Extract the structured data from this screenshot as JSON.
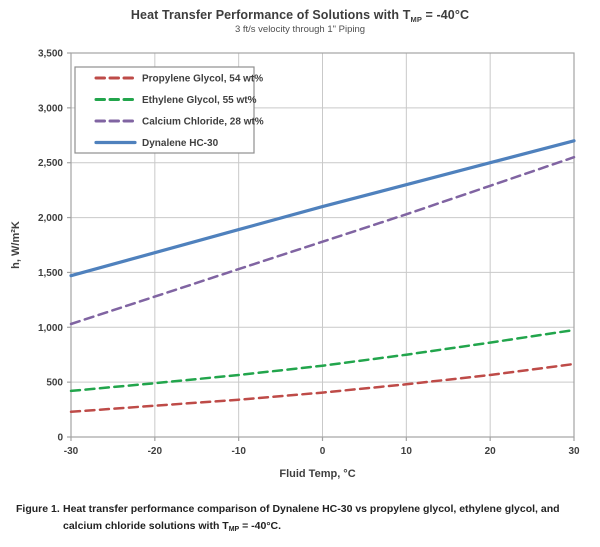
{
  "title": {
    "pre": "Heat Transfer Performance of Solutions with T",
    "sub": "MP",
    "post": " = -40°C",
    "subtitle": "3 ft/s velocity through 1\" Piping"
  },
  "caption": {
    "label": "Figure 1.",
    "line1": "Heat transfer performance comparison of Dynalene HC-30 vs propylene glycol, ethylene glycol, and",
    "line2_pre": "calcium chloride solutions with T",
    "line2_sub": "MP",
    "line2_post": " = -40°C."
  },
  "chart_data": {
    "type": "line",
    "title": "Heat Transfer Performance of Solutions with TMP = -40°C",
    "subtitle": "3 ft/s velocity through 1\" Piping",
    "xlabel": "Fluid Temp, °C",
    "ylabel": "h, W/m²K",
    "xlim": [
      -30,
      30
    ],
    "ylim": [
      0,
      3500
    ],
    "x_ticks": [
      -30,
      -20,
      -10,
      0,
      10,
      20,
      30
    ],
    "x_tick_labels": [
      "-30",
      "-20",
      "-10",
      "0",
      "10",
      "20",
      "30"
    ],
    "y_ticks": [
      0,
      500,
      1000,
      1500,
      2000,
      2500,
      3000,
      3500
    ],
    "y_tick_labels": [
      "0",
      "500",
      "1,000",
      "1,500",
      "2,000",
      "2,500",
      "3,000",
      "3,500"
    ],
    "grid": true,
    "legend_position": "top-left",
    "x": [
      -30,
      -20,
      -10,
      0,
      10,
      20,
      30
    ],
    "series": [
      {
        "name": "Propylene Glycol, 54 wt%",
        "color": "#BE4B48",
        "style": "dashed",
        "values": [
          230,
          285,
          340,
          405,
          480,
          565,
          665
        ]
      },
      {
        "name": "Ethylene Glycol, 55 wt%",
        "color": "#22A54C",
        "style": "dashed",
        "values": [
          420,
          490,
          565,
          650,
          750,
          860,
          975
        ]
      },
      {
        "name": "Calcium Chloride, 28 wt%",
        "color": "#8064A2",
        "style": "dashed",
        "values": [
          1030,
          1280,
          1530,
          1780,
          2030,
          2290,
          2550
        ]
      },
      {
        "name": "Dynalene HC-30",
        "color": "#4F81BD",
        "style": "solid",
        "values": [
          1470,
          1680,
          1890,
          2100,
          2300,
          2500,
          2700
        ]
      }
    ],
    "colors": {
      "gridline": "#c9c9c9",
      "border": "#a3a3a3",
      "tick_text": "#3f3f3f",
      "axis_title_text": "#3f3f3f",
      "legend_border": "#8f8f8f",
      "legend_text": "#3f3f3f"
    }
  }
}
